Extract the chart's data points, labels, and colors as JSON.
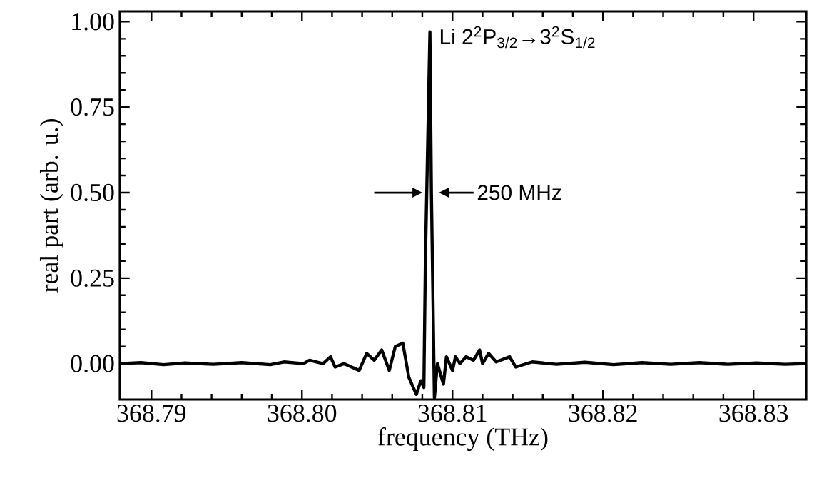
{
  "chart_data": {
    "type": "line",
    "xlabel": "frequency (THz)",
    "ylabel": "real part (arb. u.)",
    "annotations": [
      "Li 2$^{2}$P$_{3/2}$→3$^{2}$S$_{1/2}$",
      "250 MHz"
    ],
    "xlim": [
      368.7879,
      368.8335
    ],
    "ylim": [
      -0.105,
      1.03
    ],
    "xticks": [
      368.79,
      {
        "value": 368.8,
        "label": "368.80"
      },
      368.81,
      368.82,
      368.83
    ],
    "yticks": [
      {
        "value": 0,
        "label": "0.00"
      },
      {
        "value": 0.25,
        "label": "0.25"
      },
      {
        "value": 0.5,
        "label": "0.50"
      },
      {
        "value": 0.75,
        "label": "0.75"
      },
      {
        "value": 1,
        "label": "1.00"
      }
    ],
    "grid": false,
    "marker": "none",
    "line_style": "solid",
    "series": [
      {
        "color": "#000000",
        "x": [
          368.7879,
          368.7893,
          368.7908,
          368.7922,
          368.7941,
          368.796,
          368.7979,
          368.7988,
          368.8001,
          368.8005,
          368.8014,
          368.8019,
          368.8022,
          368.8028,
          368.8038,
          368.8043,
          368.8048,
          368.8053,
          368.8058,
          368.8062,
          368.8067,
          368.8071,
          368.8076,
          368.8079,
          368.8081,
          368.8082,
          368.8085,
          368.8086,
          368.8088,
          368.809,
          368.8094,
          368.8096,
          368.81,
          368.8102,
          368.8105,
          368.8109,
          368.8114,
          368.8118,
          368.812,
          368.8124,
          368.8129,
          368.8138,
          368.8142,
          368.8153,
          368.8169,
          368.8188,
          368.8207,
          368.8226,
          368.8245,
          368.8264,
          368.8283,
          368.8302,
          368.8321,
          368.8335
        ],
        "values": [
          0,
          0.003,
          -0.003,
          0.002,
          -0.002,
          0.003,
          -0.003,
          0.005,
          0,
          0.01,
          0,
          0.02,
          -0.01,
          0,
          -0.02,
          0.03,
          0.01,
          0.04,
          -0.02,
          0.05,
          0.06,
          -0.04,
          -0.09,
          -0.05,
          -0.07,
          0.3,
          0.97,
          0.5,
          -0.1,
          0,
          -0.06,
          0.02,
          -0.02,
          0.02,
          0,
          0.02,
          0.01,
          0.04,
          0,
          0.03,
          0.005,
          0.02,
          -0.01,
          0.005,
          -0.002,
          0.004,
          -0.003,
          0.003,
          -0.002,
          0.003,
          -0.002,
          0.002,
          -0.002,
          0
        ]
      }
    ]
  }
}
